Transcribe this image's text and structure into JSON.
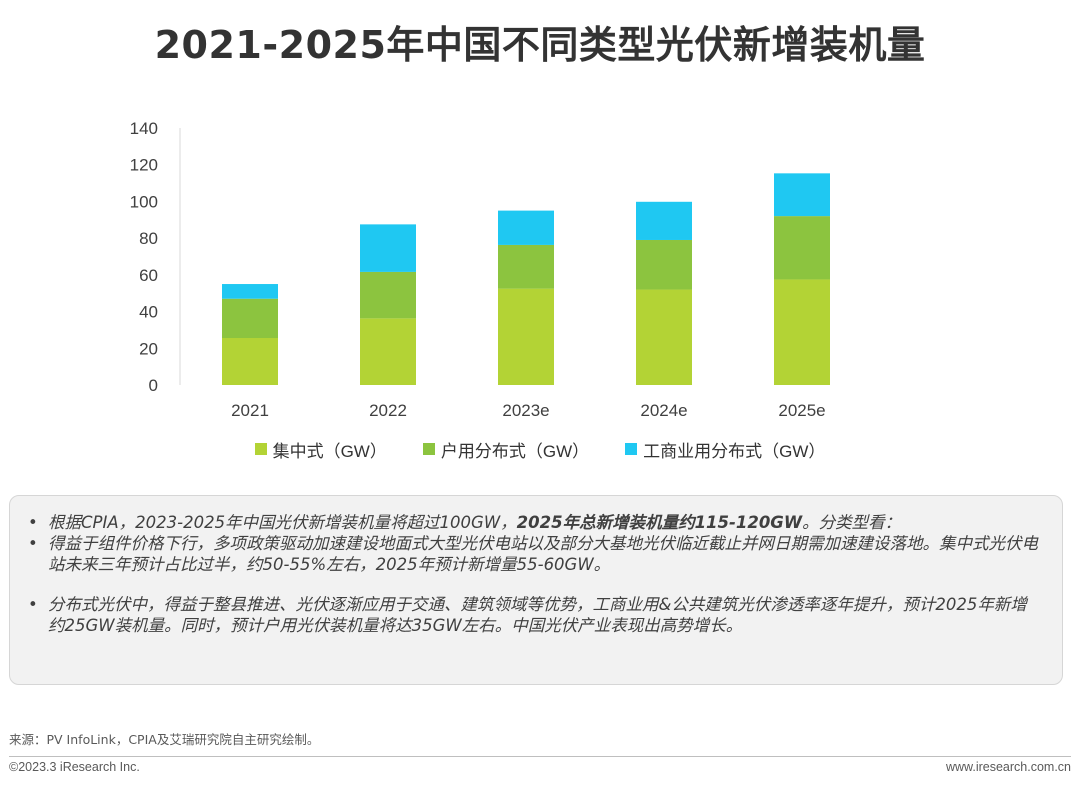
{
  "title": "2021-2025年中国不同类型光伏新增装机量",
  "chart_data": {
    "type": "bar",
    "stacked": true,
    "categories": [
      "2021",
      "2022",
      "2023e",
      "2024e",
      "2025e"
    ],
    "series": [
      {
        "name": "集中式（GW）",
        "color": "#b3d335",
        "values": [
          25.6,
          36.3,
          52.5,
          52.0,
          57.5
        ]
      },
      {
        "name": "户用分布式（GW）",
        "color": "#8cc43f",
        "values": [
          21.4,
          25.3,
          23.8,
          27.0,
          34.5
        ]
      },
      {
        "name": "工商业用分布式（GW）",
        "color": "#1fc8f2",
        "values": [
          8.0,
          25.9,
          18.7,
          20.8,
          23.3
        ]
      }
    ],
    "yticks": [
      0,
      20,
      40,
      60,
      80,
      100,
      120,
      140
    ],
    "ylim": [
      0,
      140
    ],
    "legend_position": "bottom"
  },
  "notes": {
    "bullet": "•",
    "items": [
      {
        "text": "根据CPIA，2023-2025年中国光伏新增装机量将超过100GW，",
        "bold": "2025年总新增装机量约115-120GW",
        "tail": "。分类型看："
      },
      {
        "text": "得益于组件价格下行，多项政策驱动加速建设地面式大型光伏电站以及部分大基地光伏临近截止并网日期需加速建设落地。集中式光伏电站未来三年预计占比过半，约50-55%左右，2025年预计新增量55-60GW。",
        "bold": "",
        "tail": ""
      },
      {
        "text": "分布式光伏中，得益于整县推进、光伏逐渐应用于交通、建筑领域等优势，工商业用&公共建筑光伏渗透率逐年提升，预计2025年新增约25GW装机量。同时，预计户用光伏装机量将达35GW左右。中国光伏产业表现出高势增长。",
        "bold": "",
        "tail": ""
      }
    ]
  },
  "footer": {
    "source": "来源：PV InfoLink，CPIA及艾瑞研究院自主研究绘制。",
    "copyright": "©2023.3 iResearch Inc.",
    "website": "www.iresearch.com.cn"
  }
}
